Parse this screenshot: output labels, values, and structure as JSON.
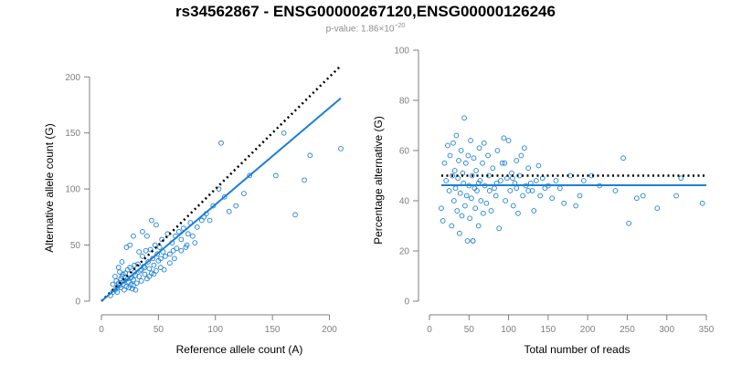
{
  "header": {
    "title": "rs34562867 - ENSG00000267120,ENSG00000126246",
    "subtitle_prefix": "p-value: 1.86×10",
    "subtitle_exponent": "−20"
  },
  "colors": {
    "points": "#1c7fd6",
    "fit": "#1c7fd6",
    "reference": "#000000",
    "axis": "#7f7f7f"
  },
  "chart_data": [
    {
      "type": "scatter",
      "title": "",
      "xlabel": "Reference allele count (A)",
      "ylabel": "Alternative allele count (G)",
      "xlim": [
        0,
        210
      ],
      "ylim": [
        0,
        210
      ],
      "xticks": [
        0,
        50,
        100,
        150,
        200
      ],
      "yticks": [
        0,
        50,
        100,
        150,
        200
      ],
      "grid": false,
      "points": [
        [
          8,
          5
        ],
        [
          10,
          8
        ],
        [
          12,
          10
        ],
        [
          14,
          12
        ],
        [
          15,
          16
        ],
        [
          16,
          14
        ],
        [
          17,
          20
        ],
        [
          18,
          22
        ],
        [
          19,
          15
        ],
        [
          20,
          18
        ],
        [
          21,
          25
        ],
        [
          22,
          13
        ],
        [
          23,
          28
        ],
        [
          24,
          17
        ],
        [
          25,
          30
        ],
        [
          26,
          21
        ],
        [
          27,
          11
        ],
        [
          28,
          19
        ],
        [
          29,
          26
        ],
        [
          30,
          23
        ],
        [
          31,
          16
        ],
        [
          32,
          33
        ],
        [
          33,
          22
        ],
        [
          34,
          27
        ],
        [
          35,
          18
        ],
        [
          36,
          40
        ],
        [
          37,
          31
        ],
        [
          38,
          24
        ],
        [
          39,
          45
        ],
        [
          40,
          20
        ],
        [
          41,
          35
        ],
        [
          42,
          29
        ],
        [
          43,
          46
        ],
        [
          44,
          25
        ],
        [
          45,
          38
        ],
        [
          46,
          32
        ],
        [
          47,
          50
        ],
        [
          48,
          27
        ],
        [
          49,
          42
        ],
        [
          50,
          36
        ],
        [
          51,
          48
        ],
        [
          52,
          30
        ],
        [
          53,
          55
        ],
        [
          54,
          44
        ],
        [
          56,
          40
        ],
        [
          58,
          60
        ],
        [
          60,
          34
        ],
        [
          62,
          52
        ],
        [
          63,
          45
        ],
        [
          65,
          58
        ],
        [
          66,
          47
        ],
        [
          68,
          62
        ],
        [
          70,
          55
        ],
        [
          72,
          65
        ],
        [
          74,
          48
        ],
        [
          76,
          60
        ],
        [
          78,
          70
        ],
        [
          80,
          58
        ],
        [
          84,
          66
        ],
        [
          88,
          72
        ],
        [
          92,
          78
        ],
        [
          98,
          85
        ],
        [
          103,
          100
        ],
        [
          105,
          141
        ],
        [
          108,
          93
        ],
        [
          112,
          80
        ],
        [
          118,
          85
        ],
        [
          125,
          96
        ],
        [
          130,
          112
        ],
        [
          153,
          112
        ],
        [
          160,
          150
        ],
        [
          170,
          77
        ],
        [
          178,
          108
        ],
        [
          183,
          130
        ],
        [
          210,
          136
        ],
        [
          15,
          30
        ],
        [
          18,
          35
        ],
        [
          22,
          48
        ],
        [
          25,
          50
        ],
        [
          28,
          58
        ],
        [
          33,
          44
        ],
        [
          36,
          62
        ],
        [
          40,
          58
        ],
        [
          44,
          72
        ],
        [
          48,
          68
        ],
        [
          12,
          22
        ],
        [
          14,
          8
        ],
        [
          20,
          10
        ],
        [
          24,
          12
        ],
        [
          28,
          14
        ],
        [
          30,
          10
        ],
        [
          16,
          26
        ],
        [
          10,
          15
        ],
        [
          13,
          18
        ],
        [
          17,
          12
        ],
        [
          19,
          24
        ],
        [
          23,
          20
        ],
        [
          26,
          15
        ],
        [
          29,
          32
        ],
        [
          35,
          28
        ],
        [
          38,
          30
        ],
        [
          42,
          22
        ],
        [
          46,
          24
        ],
        [
          52,
          38
        ],
        [
          55,
          28
        ],
        [
          60,
          42
        ],
        [
          64,
          38
        ],
        [
          70,
          45
        ],
        [
          75,
          50
        ],
        [
          82,
          52
        ],
        [
          90,
          75
        ],
        [
          95,
          72
        ]
      ],
      "reference_line": {
        "slope": 1,
        "style": "dotted"
      },
      "fit_line": {
        "slope": 0.862,
        "intercept": 0
      }
    },
    {
      "type": "scatter",
      "title": "",
      "xlabel": "Total number of reads",
      "ylabel": "Percentage alternative (G)",
      "xlim": [
        0,
        350
      ],
      "ylim": [
        0,
        100
      ],
      "xticks": [
        0,
        50,
        100,
        150,
        200,
        250,
        300,
        350
      ],
      "yticks": [
        0,
        20,
        40,
        60,
        80,
        100
      ],
      "grid": false,
      "points": [
        [
          15,
          37
        ],
        [
          17,
          32
        ],
        [
          19,
          55
        ],
        [
          21,
          48
        ],
        [
          23,
          62
        ],
        [
          25,
          44
        ],
        [
          26,
          58
        ],
        [
          28,
          30
        ],
        [
          29,
          50
        ],
        [
          30,
          63
        ],
        [
          31,
          40
        ],
        [
          32,
          52
        ],
        [
          33,
          45
        ],
        [
          34,
          66
        ],
        [
          35,
          36
        ],
        [
          36,
          49
        ],
        [
          37,
          56
        ],
        [
          38,
          27
        ],
        [
          39,
          43
        ],
        [
          40,
          60
        ],
        [
          41,
          34
        ],
        [
          42,
          51
        ],
        [
          43,
          47
        ],
        [
          44,
          73
        ],
        [
          45,
          38
        ],
        [
          46,
          55
        ],
        [
          47,
          42
        ],
        [
          48,
          24
        ],
        [
          49,
          58
        ],
        [
          50,
          46
        ],
        [
          51,
          33
        ],
        [
          52,
          64
        ],
        [
          53,
          41
        ],
        [
          54,
          50
        ],
        [
          55,
          24
        ],
        [
          56,
          57
        ],
        [
          57,
          45
        ],
        [
          58,
          37
        ],
        [
          59,
          52
        ],
        [
          60,
          44
        ],
        [
          62,
          30
        ],
        [
          63,
          61
        ],
        [
          64,
          48
        ],
        [
          65,
          40
        ],
        [
          67,
          55
        ],
        [
          68,
          35
        ],
        [
          69,
          63
        ],
        [
          70,
          46
        ],
        [
          72,
          39
        ],
        [
          74,
          58
        ],
        [
          75,
          50
        ],
        [
          76,
          44
        ],
        [
          78,
          36
        ],
        [
          80,
          53
        ],
        [
          82,
          45
        ],
        [
          84,
          42
        ],
        [
          86,
          60
        ],
        [
          88,
          29
        ],
        [
          90,
          48
        ],
        [
          92,
          55
        ],
        [
          94,
          65
        ],
        [
          96,
          40
        ],
        [
          98,
          49
        ],
        [
          100,
          64
        ],
        [
          102,
          44
        ],
        [
          104,
          51
        ],
        [
          106,
          38
        ],
        [
          108,
          47
        ],
        [
          110,
          56
        ],
        [
          112,
          35
        ],
        [
          114,
          50
        ],
        [
          116,
          58
        ],
        [
          118,
          42
        ],
        [
          120,
          61
        ],
        [
          122,
          46
        ],
        [
          125,
          53
        ],
        [
          128,
          47
        ],
        [
          130,
          44
        ],
        [
          132,
          36
        ],
        [
          135,
          48
        ],
        [
          138,
          54
        ],
        [
          140,
          42
        ],
        [
          143,
          49
        ],
        [
          146,
          45
        ],
        [
          150,
          46
        ],
        [
          155,
          41
        ],
        [
          160,
          48
        ],
        [
          165,
          45
        ],
        [
          170,
          39
        ],
        [
          178,
          50
        ],
        [
          185,
          38
        ],
        [
          190,
          42
        ],
        [
          195,
          48
        ],
        [
          205,
          50
        ],
        [
          215,
          46
        ],
        [
          235,
          44
        ],
        [
          245,
          57
        ],
        [
          252,
          31
        ],
        [
          262,
          41
        ],
        [
          270,
          42
        ],
        [
          288,
          37
        ],
        [
          312,
          42
        ],
        [
          318,
          49
        ],
        [
          345,
          39
        ],
        [
          55,
          24
        ],
        [
          62,
          47
        ],
        [
          85,
          47
        ],
        [
          95,
          55
        ],
        [
          105,
          49
        ],
        [
          110,
          45
        ],
        [
          125,
          44
        ]
      ],
      "reference_line": {
        "y": 50,
        "style": "dotted"
      },
      "fit_line": {
        "y": 46.2
      }
    }
  ]
}
